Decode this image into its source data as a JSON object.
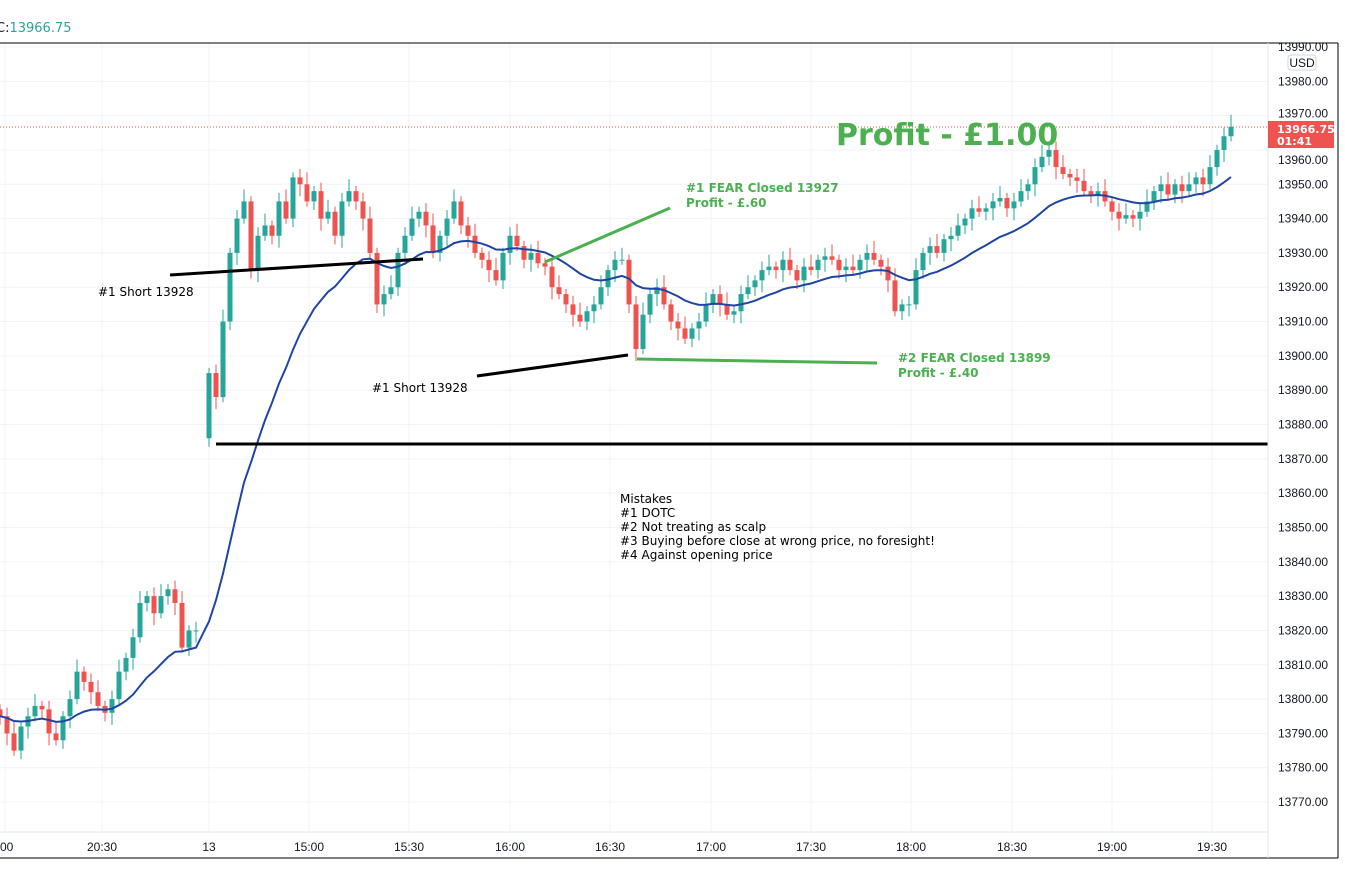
{
  "legend": {
    "label": "C:",
    "value": "13966.75"
  },
  "price_axis": {
    "currency": "USD",
    "last_price": "13966.75",
    "countdown": "01:41"
  },
  "colors": {
    "up": "#26a69a",
    "down": "#ef5350",
    "ma": "#1f45a3",
    "annotation_green": "#4caf50"
  },
  "chart_data": {
    "type": "candlestick",
    "ylim": [
      13765,
      13995
    ],
    "y_ticks": [
      "13990.00",
      "13980.00",
      "13970.00",
      "13960.00",
      "13950.00",
      "13940.00",
      "13930.00",
      "13920.00",
      "13910.00",
      "13900.00",
      "13890.00",
      "13880.00",
      "13870.00",
      "13860.00",
      "13850.00",
      "13840.00",
      "13830.00",
      "13820.00",
      "13810.00",
      "13800.00",
      "13790.00",
      "13780.00",
      "13770.00"
    ],
    "x_ticks": [
      ":00",
      "20:30",
      "13",
      "15:00",
      "15:30",
      "16:00",
      "16:30",
      "17:00",
      "17:30",
      "18:00",
      "18:30",
      "19:00",
      "19:30"
    ],
    "closes_pre_gap": [
      13795,
      13790,
      13785,
      13792,
      13795,
      13798,
      13797,
      13790,
      13788,
      13795,
      13800,
      13808,
      13805,
      13802,
      13798,
      13796,
      13800,
      13808,
      13812,
      13818,
      13828,
      13830,
      13825,
      13830,
      13832,
      13828,
      13815,
      13820,
      13820
    ],
    "gap_open": 13876,
    "closes_post_gap": [
      13895,
      13888,
      13910,
      13930,
      13940,
      13945,
      13925,
      13935,
      13938,
      13935,
      13945,
      13940,
      13952,
      13950,
      13945,
      13948,
      13940,
      13942,
      13935,
      13945,
      13948,
      13945,
      13940,
      13930,
      13915,
      13918,
      13920,
      13930,
      13935,
      13940,
      13942,
      13938,
      13930,
      13935,
      13940,
      13945,
      13938,
      13935,
      13930,
      13928,
      13925,
      13922,
      13930,
      13935,
      13932,
      13928,
      13930,
      13927,
      13926,
      13920,
      13918,
      13915,
      13912,
      13910,
      13913,
      13915,
      13920,
      13925,
      13928,
      13928,
      13915,
      13902,
      13912,
      13918,
      13920,
      13915,
      13910,
      13908,
      13905,
      13908,
      13910,
      13915,
      13918,
      13915,
      13912,
      13913,
      13918,
      13920,
      13922,
      13925,
      13926,
      13925,
      13928,
      13925,
      13922,
      13926,
      13925,
      13928,
      13929,
      13928,
      13925,
      13926,
      13925,
      13928,
      13930,
      13928,
      13926,
      13922,
      13913,
      13915,
      13915,
      13925,
      13930,
      13932,
      13930,
      13934,
      13935,
      13938,
      13940,
      13943,
      13942,
      13943,
      13945,
      13946,
      13943,
      13945,
      13948,
      13950,
      13955,
      13958,
      13960,
      13955,
      13953,
      13952,
      13951,
      13948,
      13947,
      13948,
      13945,
      13942,
      13940,
      13941,
      13940,
      13942,
      13945,
      13948,
      13950,
      13947,
      13950,
      13948,
      13950,
      13952,
      13950,
      13955,
      13960,
      13964,
      13966.75
    ],
    "moving_average": "EMA 20",
    "annotations": {
      "profit_title": "Profit - £1.00",
      "short1": "#1 Short 13928",
      "short2": "#1 Short 13928",
      "fear1_line1": "#1 FEAR Closed 13927",
      "fear1_line2": "Profit - £.60",
      "fear2_line1": "#2 FEAR Closed 13899",
      "fear2_line2": "Profit - £.40",
      "mistakes": [
        "Mistakes",
        "#1  DOTC",
        "#2  Not treating as scalp",
        "#3  Buying before close at wrong price, no foresight!",
        "#4  Against opening price"
      ]
    }
  }
}
